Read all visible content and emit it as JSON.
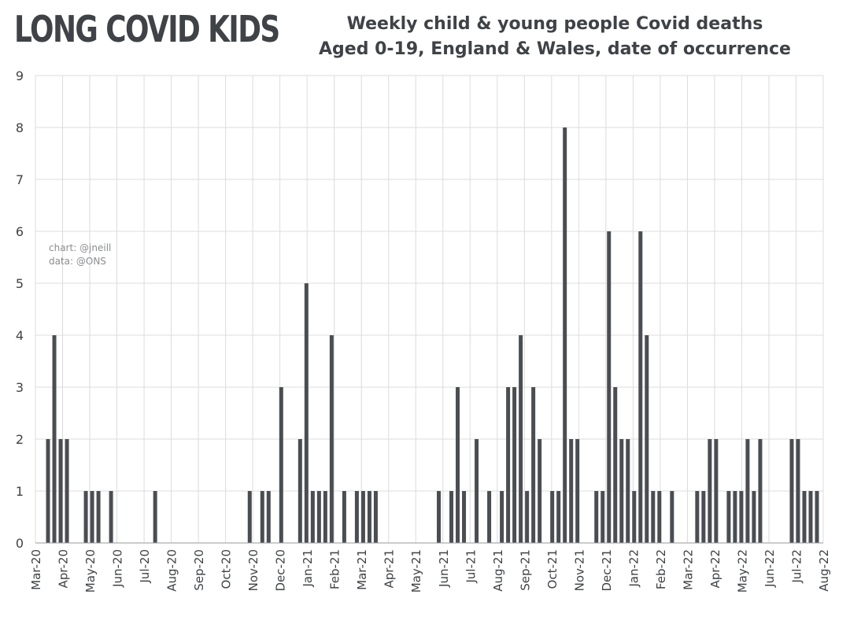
{
  "logo": {
    "text": "LONG COVID KIDS",
    "accent_color": "#d9572f"
  },
  "chart_data": {
    "type": "bar",
    "title": "Weekly child & young people Covid deaths",
    "subtitle": "Aged 0-19, England & Wales, date of occurrence",
    "annotations": [
      "chart: @jneill",
      "data: @ONS"
    ],
    "xlabel": "",
    "ylabel": "",
    "ylim": [
      0,
      9
    ],
    "yticks": [
      0,
      1,
      2,
      3,
      4,
      5,
      6,
      7,
      8,
      9
    ],
    "month_labels": [
      "Mar-20",
      "Apr-20",
      "May-20",
      "Jun-20",
      "Jul-20",
      "Aug-20",
      "Sep-20",
      "Oct-20",
      "Nov-20",
      "Dec-20",
      "Jan-21",
      "Feb-21",
      "Mar-21",
      "Apr-21",
      "May-21",
      "Jun-21",
      "Jul-21",
      "Aug-21",
      "Sep-21",
      "Oct-21",
      "Nov-21",
      "Dec-21",
      "Jan-22",
      "Feb-22",
      "Mar-22",
      "Apr-22",
      "May-22",
      "Jun-22",
      "Jul-22",
      "Aug-22"
    ],
    "week_label_offset": 1,
    "values": [
      0,
      2,
      4,
      2,
      2,
      0,
      0,
      1,
      1,
      1,
      0,
      1,
      0,
      0,
      0,
      0,
      0,
      0,
      1,
      0,
      0,
      0,
      0,
      0,
      0,
      0,
      0,
      0,
      0,
      0,
      0,
      0,
      0,
      1,
      0,
      1,
      1,
      0,
      3,
      0,
      0,
      2,
      5,
      1,
      1,
      1,
      4,
      0,
      1,
      0,
      1,
      1,
      1,
      1,
      0,
      0,
      0,
      0,
      0,
      0,
      0,
      0,
      0,
      1,
      0,
      1,
      3,
      1,
      0,
      2,
      0,
      1,
      0,
      1,
      3,
      3,
      4,
      1,
      3,
      2,
      0,
      1,
      1,
      8,
      2,
      2,
      0,
      0,
      1,
      1,
      6,
      3,
      2,
      2,
      1,
      6,
      4,
      1,
      1,
      0,
      1,
      0,
      0,
      0,
      1,
      1,
      2,
      2,
      0,
      1,
      1,
      1,
      2,
      1,
      2,
      0,
      0,
      0,
      0,
      2,
      2,
      1,
      1,
      1
    ],
    "bar_color": "#4a4d52",
    "grid": true
  }
}
